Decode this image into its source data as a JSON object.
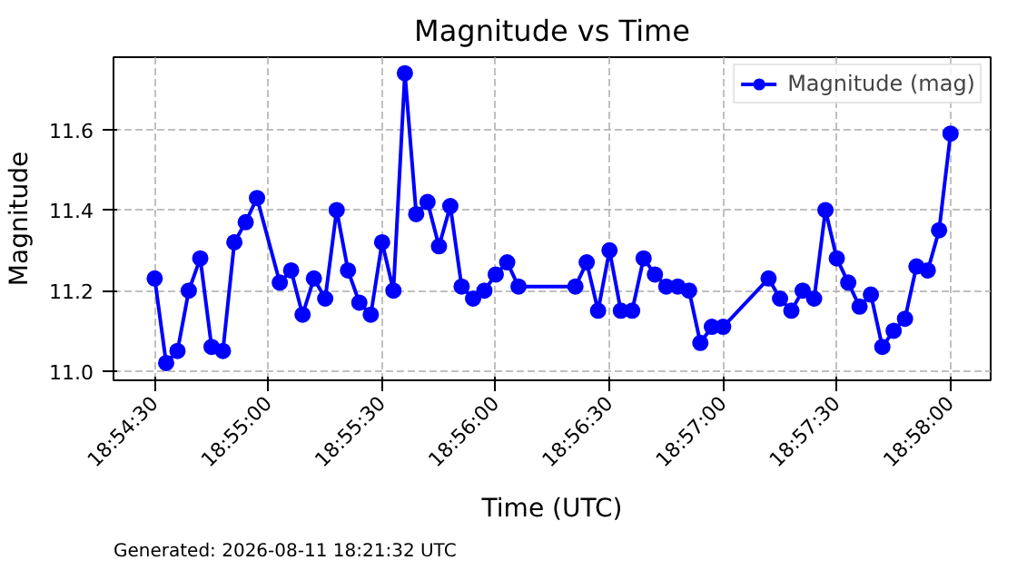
{
  "chart_data": {
    "type": "line",
    "title": "Magnitude vs Time",
    "xlabel": "Time (UTC)",
    "ylabel": "Magnitude",
    "annotations": [
      "Generated: 2026-08-11 18:21:32 UTC"
    ],
    "x": [
      18.90833,
      18.90917,
      18.91,
      18.91083,
      18.91167,
      18.9125,
      18.91333,
      18.91417,
      18.915,
      18.91583,
      18.9175,
      18.91833,
      18.91917,
      18.92,
      18.92083,
      18.92167,
      18.9225,
      18.92333,
      18.92417,
      18.925,
      18.92583,
      18.92667,
      18.9275,
      18.92833,
      18.92917,
      18.93,
      18.93083,
      18.93167,
      18.9325,
      18.93333,
      18.93417,
      18.935,
      18.93917,
      18.94,
      18.94083,
      18.94167,
      18.9425,
      18.94333,
      18.94417,
      18.945,
      18.94583,
      18.94667,
      18.9475,
      18.94833,
      18.94917,
      18.95,
      18.95333,
      18.95417,
      18.955,
      18.95583,
      18.95667,
      18.9575,
      18.95833,
      18.95917,
      18.96,
      18.96083,
      18.96167,
      18.9625,
      18.96333,
      18.96417,
      18.965,
      18.96583,
      18.96667
    ],
    "series": [
      {
        "name": "Magnitude (mag)",
        "color": "#0000ff",
        "values": [
          11.23,
          11.02,
          11.05,
          11.2,
          11.28,
          11.06,
          11.05,
          11.32,
          11.37,
          11.43,
          11.22,
          11.25,
          11.14,
          11.23,
          11.18,
          11.4,
          11.25,
          11.17,
          11.14,
          11.32,
          11.2,
          11.74,
          11.39,
          11.42,
          11.31,
          11.41,
          11.21,
          11.18,
          11.2,
          11.24,
          11.27,
          11.21,
          11.21,
          11.27,
          11.15,
          11.3,
          11.15,
          11.15,
          11.28,
          11.24,
          11.21,
          11.21,
          11.2,
          11.07,
          11.11,
          11.11,
          11.23,
          11.18,
          11.15,
          11.2,
          11.18,
          11.4,
          11.28,
          11.22,
          11.16,
          11.19,
          11.06,
          11.1,
          11.13,
          11.26,
          11.25,
          11.35,
          11.59
        ]
      }
    ],
    "xlim": [
      18.90531,
      18.96961
    ],
    "ylim": [
      10.977,
      11.78
    ],
    "xticks": [
      {
        "value": 18.90833,
        "label": "18:54:30"
      },
      {
        "value": 18.91667,
        "label": "18:55:00"
      },
      {
        "value": 18.925,
        "label": "18:55:30"
      },
      {
        "value": 18.93333,
        "label": "18:56:00"
      },
      {
        "value": 18.94167,
        "label": "18:56:30"
      },
      {
        "value": 18.95,
        "label": "18:57:00"
      },
      {
        "value": 18.95833,
        "label": "18:57:30"
      },
      {
        "value": 18.96667,
        "label": "18:58:00"
      }
    ],
    "yticks": [
      {
        "value": 11.0,
        "label": "11.0"
      },
      {
        "value": 11.2,
        "label": "11.2"
      },
      {
        "value": 11.4,
        "label": "11.4"
      },
      {
        "value": 11.6,
        "label": "11.6"
      }
    ],
    "grid": true,
    "legend": "top right",
    "marker": "circle",
    "line_style": "solid"
  }
}
